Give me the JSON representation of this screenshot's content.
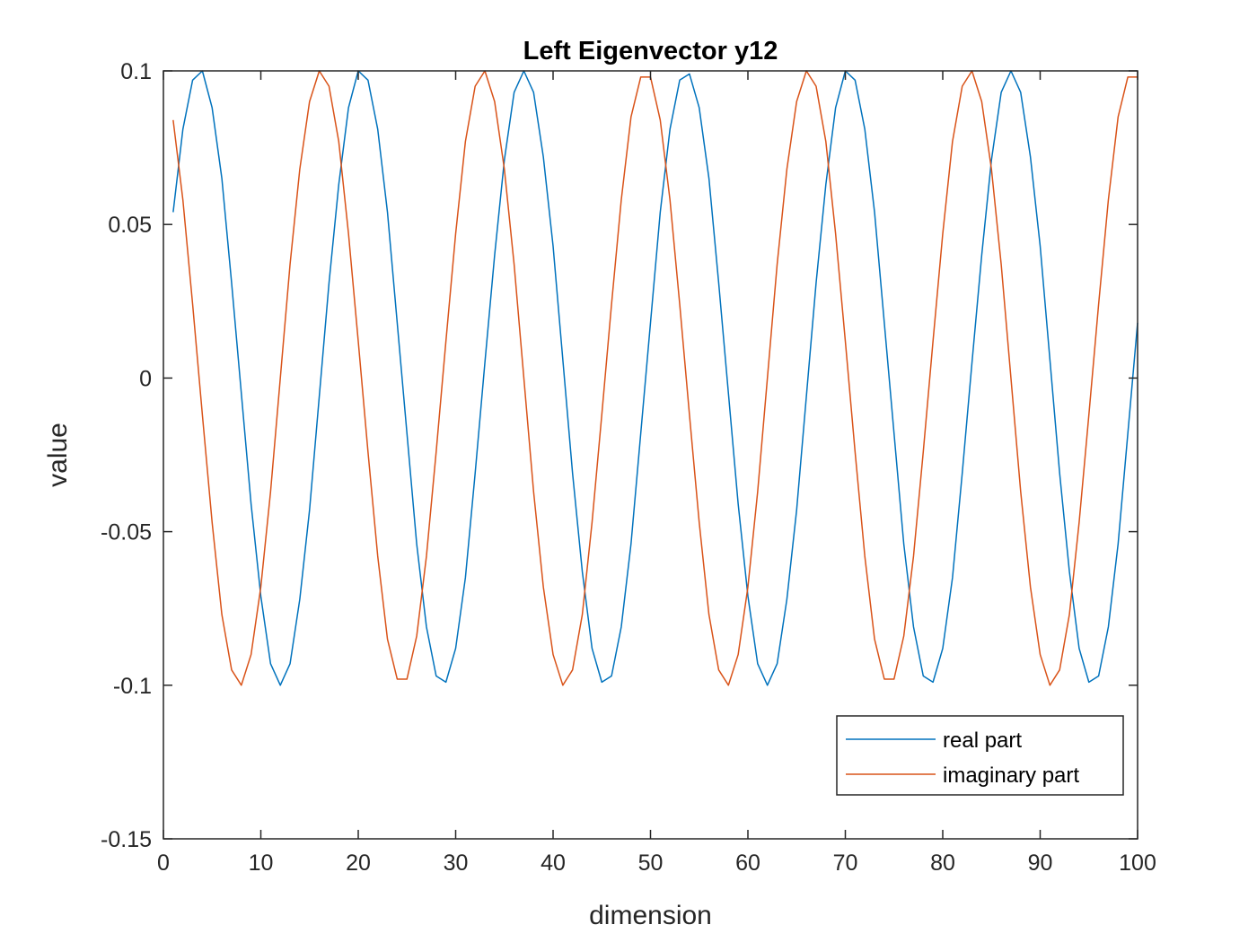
{
  "chart_data": {
    "type": "line",
    "title": "Left Eigenvector y12",
    "xlabel": "dimension",
    "ylabel": "value",
    "xlim": [
      0,
      100
    ],
    "ylim": [
      -0.15,
      0.1
    ],
    "xticks": [
      0,
      10,
      20,
      30,
      40,
      50,
      60,
      70,
      80,
      90,
      100
    ],
    "xtick_labels": [
      "0",
      "10",
      "20",
      "30",
      "40",
      "50",
      "60",
      "70",
      "80",
      "90",
      "100"
    ],
    "yticks": [
      -0.15,
      -0.1,
      -0.05,
      0,
      0.05,
      0.1
    ],
    "ytick_labels": [
      "-0.15",
      "-0.1",
      "-0.05",
      "0",
      "0.05",
      "0.1"
    ],
    "grid": false,
    "legend_position": "bottom-right",
    "x": [
      1,
      2,
      3,
      4,
      5,
      6,
      7,
      8,
      9,
      10,
      11,
      12,
      13,
      14,
      15,
      16,
      17,
      18,
      19,
      20,
      21,
      22,
      23,
      24,
      25,
      26,
      27,
      28,
      29,
      30,
      31,
      32,
      33,
      34,
      35,
      36,
      37,
      38,
      39,
      40,
      41,
      42,
      43,
      44,
      45,
      46,
      47,
      48,
      49,
      50,
      51,
      52,
      53,
      54,
      55,
      56,
      57,
      58,
      59,
      60,
      61,
      62,
      63,
      64,
      65,
      66,
      67,
      68,
      69,
      70,
      71,
      72,
      73,
      74,
      75,
      76,
      77,
      78,
      79,
      80,
      81,
      82,
      83,
      84,
      85,
      86,
      87,
      88,
      89,
      90,
      91,
      92,
      93,
      94,
      95,
      96,
      97,
      98,
      99,
      100
    ],
    "series": [
      {
        "name": "real part",
        "color": "#0072BD",
        "values": [
          0.054,
          0.081,
          0.097,
          0.1,
          0.088,
          0.065,
          0.031,
          -0.005,
          -0.041,
          -0.071,
          -0.093,
          -0.1,
          -0.093,
          -0.072,
          -0.043,
          -0.006,
          0.031,
          0.063,
          0.088,
          0.1,
          0.097,
          0.081,
          0.054,
          0.018,
          -0.018,
          -0.054,
          -0.081,
          -0.097,
          -0.099,
          -0.088,
          -0.065,
          -0.031,
          0.005,
          0.04,
          0.071,
          0.093,
          0.1,
          0.093,
          0.072,
          0.043,
          0.006,
          -0.031,
          -0.063,
          -0.088,
          -0.099,
          -0.097,
          -0.081,
          -0.054,
          -0.018,
          0.018,
          0.054,
          0.081,
          0.097,
          0.099,
          0.088,
          0.065,
          0.031,
          -0.005,
          -0.041,
          -0.071,
          -0.093,
          -0.1,
          -0.093,
          -0.072,
          -0.043,
          -0.006,
          0.031,
          0.063,
          0.088,
          0.1,
          0.097,
          0.081,
          0.054,
          0.018,
          -0.018,
          -0.054,
          -0.081,
          -0.097,
          -0.099,
          -0.088,
          -0.065,
          -0.031,
          0.005,
          0.04,
          0.071,
          0.093,
          0.1,
          0.093,
          0.072,
          0.043,
          0.006,
          -0.031,
          -0.063,
          -0.088,
          -0.099,
          -0.097,
          -0.081,
          -0.054,
          -0.018,
          0.018
        ]
      },
      {
        "name": "imaginary part",
        "color": "#D95319",
        "values": [
          0.084,
          0.058,
          0.024,
          -0.012,
          -0.047,
          -0.077,
          -0.095,
          -0.1,
          -0.09,
          -0.068,
          -0.037,
          0.0,
          0.037,
          0.068,
          0.09,
          0.1,
          0.095,
          0.077,
          0.047,
          0.012,
          -0.024,
          -0.058,
          -0.085,
          -0.098,
          -0.098,
          -0.084,
          -0.058,
          -0.024,
          0.012,
          0.047,
          0.077,
          0.095,
          0.1,
          0.09,
          0.068,
          0.037,
          0.0,
          -0.037,
          -0.068,
          -0.09,
          -0.1,
          -0.095,
          -0.077,
          -0.047,
          -0.012,
          0.024,
          0.058,
          0.085,
          0.098,
          0.098,
          0.084,
          0.058,
          0.024,
          -0.012,
          -0.047,
          -0.077,
          -0.095,
          -0.1,
          -0.09,
          -0.068,
          -0.037,
          0.0,
          0.037,
          0.068,
          0.09,
          0.1,
          0.095,
          0.077,
          0.047,
          0.012,
          -0.024,
          -0.058,
          -0.085,
          -0.098,
          -0.098,
          -0.084,
          -0.058,
          -0.024,
          0.012,
          0.047,
          0.077,
          0.095,
          0.1,
          0.09,
          0.068,
          0.037,
          0.0,
          -0.037,
          -0.068,
          -0.09,
          -0.1,
          -0.095,
          -0.077,
          -0.047,
          -0.012,
          0.024,
          0.058,
          0.085,
          0.098,
          0.098
        ]
      }
    ]
  }
}
